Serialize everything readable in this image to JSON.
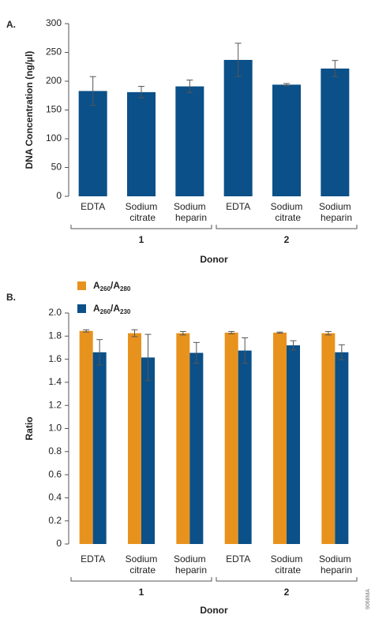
{
  "chart_data": [
    {
      "type": "bar",
      "panel_label": "A.",
      "y_label": "DNA Concentration (ng/µl)",
      "x_label": "Donor",
      "categories": [
        "EDTA",
        "Sodium citrate",
        "Sodium heparin",
        "EDTA",
        "Sodium citrate",
        "Sodium heparin"
      ],
      "group_labels": [
        "1",
        "1",
        "1",
        "2",
        "2",
        "2"
      ],
      "series": [
        {
          "name": null,
          "color": "#0b5088",
          "values": [
            183,
            181,
            191,
            237,
            194,
            222
          ],
          "errors": [
            25,
            10,
            11,
            29,
            2,
            14
          ]
        }
      ],
      "ylim": [
        0,
        300
      ],
      "yticks": [
        0,
        50,
        100,
        150,
        200,
        250,
        300
      ],
      "grid": false
    },
    {
      "type": "bar",
      "panel_label": "B.",
      "y_label": "Ratio",
      "x_label": "Donor",
      "categories": [
        "EDTA",
        "Sodium citrate",
        "Sodium heparin",
        "EDTA",
        "Sodium citrate",
        "Sodium heparin"
      ],
      "group_labels": [
        "1",
        "1",
        "1",
        "2",
        "2",
        "2"
      ],
      "series": [
        {
          "name": "A260/A280",
          "color": "#e8921e",
          "values": [
            1.845,
            1.825,
            1.825,
            1.83,
            1.83,
            1.825
          ],
          "errors": [
            0.01,
            0.03,
            0.015,
            0.01,
            0.005,
            0.015
          ]
        },
        {
          "name": "A260/A230",
          "color": "#0b5088",
          "values": [
            1.66,
            1.615,
            1.655,
            1.675,
            1.72,
            1.66
          ],
          "errors": [
            0.11,
            0.2,
            0.09,
            0.11,
            0.04,
            0.065
          ]
        }
      ],
      "ylim": [
        0,
        2
      ],
      "yticks": [
        0,
        0.2,
        0.4,
        0.6,
        0.8,
        {
          "value": 1,
          "label": "1.0"
        },
        1.2,
        1.4,
        1.6,
        1.8,
        {
          "value": 2,
          "label": "2.0"
        }
      ],
      "grid": false
    }
  ],
  "figure_id": "9068MA"
}
